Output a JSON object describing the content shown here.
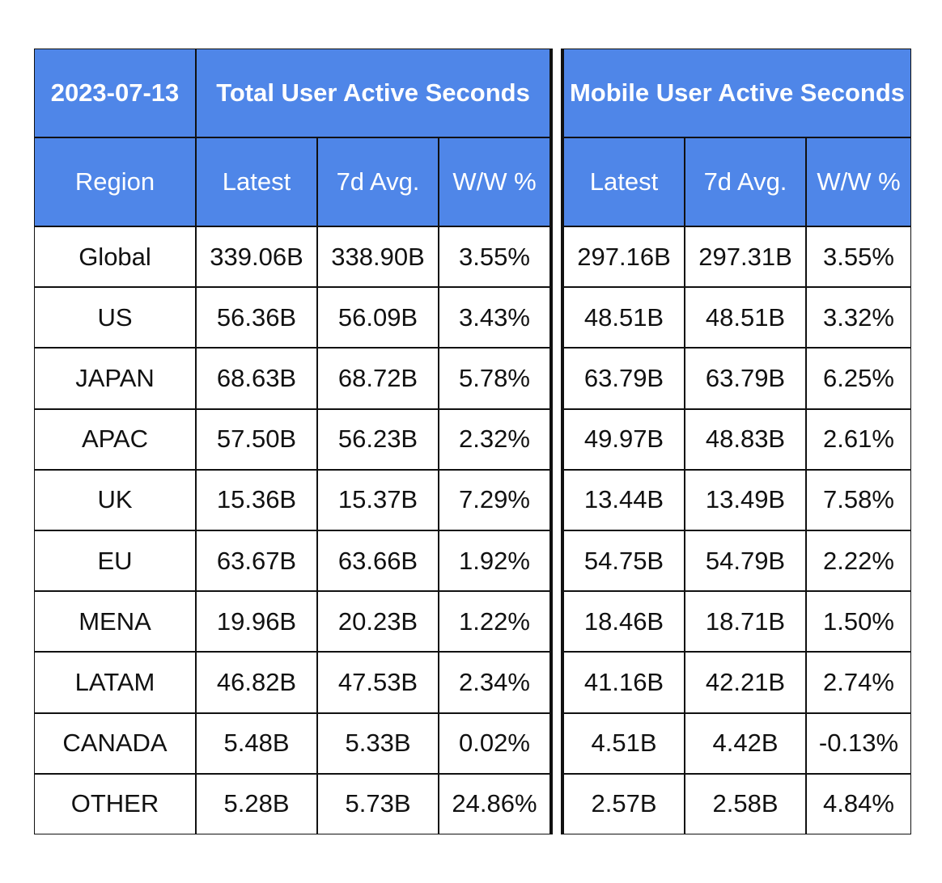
{
  "header": {
    "date": "2023-07-13",
    "groups": [
      "Total User Active Seconds",
      "Mobile User Active Seconds"
    ],
    "columns": [
      "Region",
      "Latest",
      "7d Avg.",
      "W/W %",
      "Latest",
      "7d Avg.",
      "W/W %"
    ]
  },
  "table": {
    "rows": [
      [
        "Global",
        "339.06B",
        "338.90B",
        "3.55%",
        "297.16B",
        "297.31B",
        "3.55%"
      ],
      [
        "US",
        "56.36B",
        "56.09B",
        "3.43%",
        "48.51B",
        "48.51B",
        "3.32%"
      ],
      [
        "JAPAN",
        "68.63B",
        "68.72B",
        "5.78%",
        "63.79B",
        "63.79B",
        "6.25%"
      ],
      [
        "APAC",
        "57.50B",
        "56.23B",
        "2.32%",
        "49.97B",
        "48.83B",
        "2.61%"
      ],
      [
        "UK",
        "15.36B",
        "15.37B",
        "7.29%",
        "13.44B",
        "13.49B",
        "7.58%"
      ],
      [
        "EU",
        "63.67B",
        "63.66B",
        "1.92%",
        "54.75B",
        "54.79B",
        "2.22%"
      ],
      [
        "MENA",
        "19.96B",
        "20.23B",
        "1.22%",
        "18.46B",
        "18.71B",
        "1.50%"
      ],
      [
        "LATAM",
        "46.82B",
        "47.53B",
        "2.34%",
        "41.16B",
        "42.21B",
        "2.74%"
      ],
      [
        "CANADA",
        "5.48B",
        "5.33B",
        "0.02%",
        "4.51B",
        "4.42B",
        "-0.13%"
      ],
      [
        "OTHER",
        "5.28B",
        "5.73B",
        "24.86%",
        "2.57B",
        "2.58B",
        "4.84%"
      ]
    ]
  }
}
